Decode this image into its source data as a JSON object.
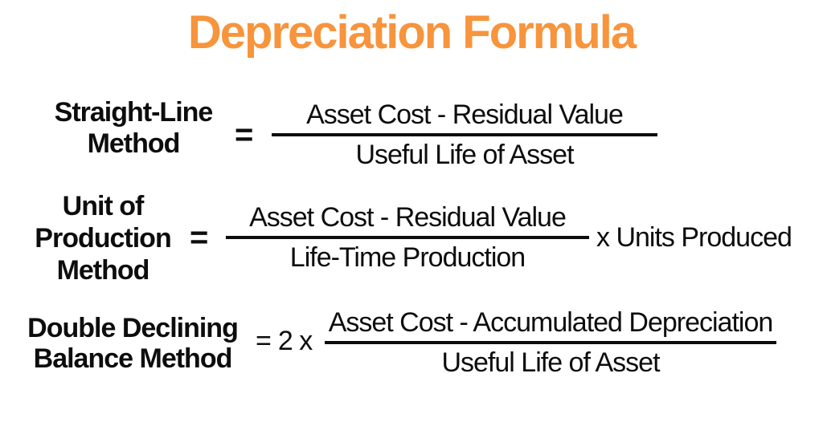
{
  "page": {
    "title": "Depreciation Formula",
    "accent_color": "#F7943C",
    "text_color": "#0D0D0D",
    "background_color": "#FFFFFF"
  },
  "formulas": [
    {
      "name": "Straight-Line Method",
      "label_lines": [
        "Straight-Line",
        "Method"
      ],
      "equals": "=",
      "numerator": "Asset Cost - Residual Value",
      "denominator": "Useful Life of Asset"
    },
    {
      "name": "Unit of Production Method",
      "label_lines": [
        "Unit of",
        "Production",
        "Method"
      ],
      "equals": "=",
      "numerator": "Asset Cost - Residual Value",
      "denominator": "Life-Time Production",
      "multiplier": "x Units Produced"
    },
    {
      "name": "Double Declining Balance Method",
      "label_lines": [
        "Double Declining",
        "Balance Method"
      ],
      "equals": "=",
      "coefficient": "2 x",
      "numerator": "Asset Cost - Accumulated Depreciation",
      "denominator": "Useful Life of Asset"
    }
  ]
}
